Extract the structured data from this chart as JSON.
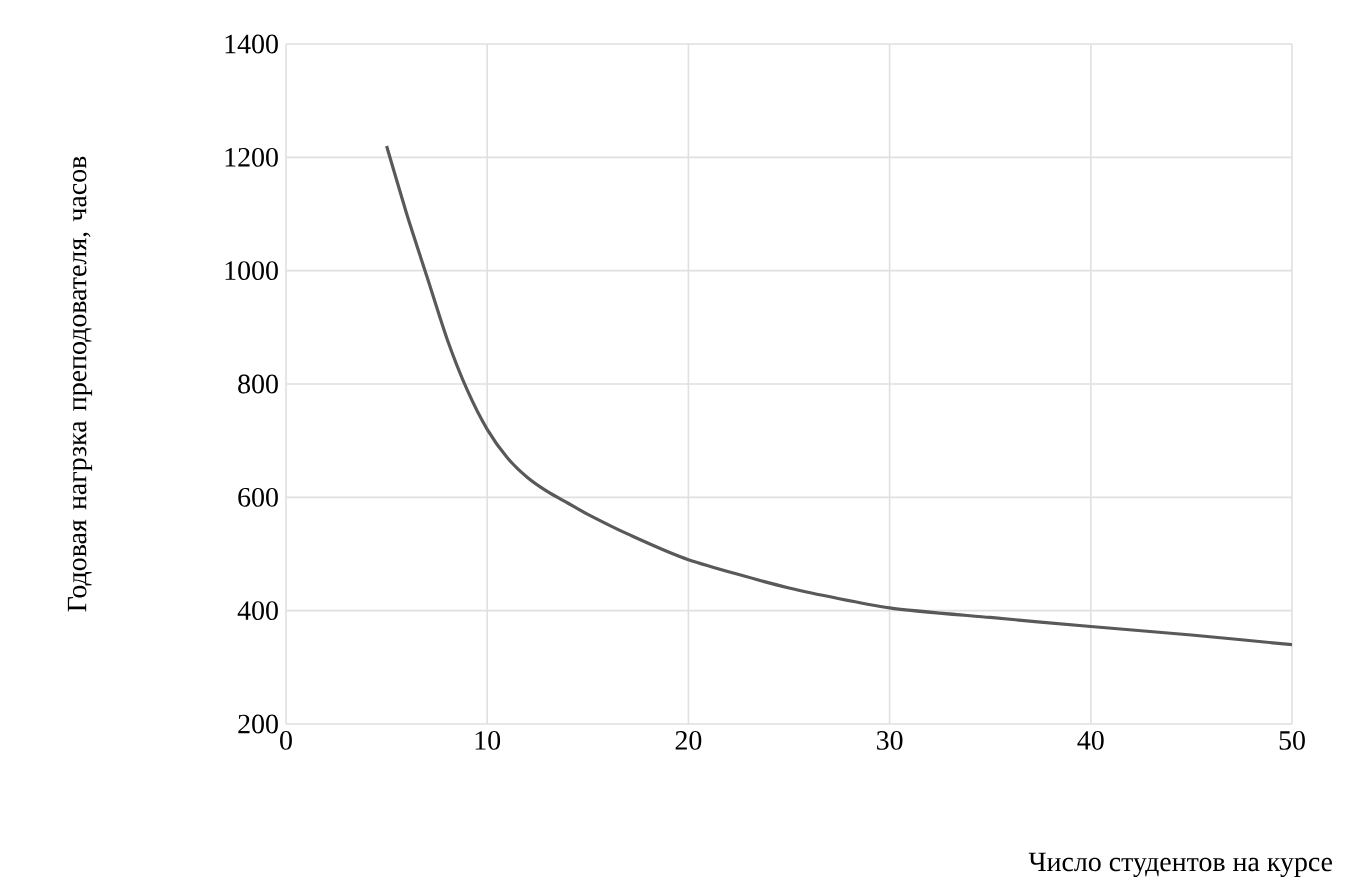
{
  "chart_data": {
    "type": "line",
    "xlabel": "Число студентов на курсе",
    "ylabel": "Годовая нагрзка преподователя, часов",
    "x": [
      5,
      6,
      7,
      8,
      9,
      10,
      11,
      12,
      13,
      14,
      15,
      17,
      20,
      25,
      30,
      35,
      40,
      45,
      50
    ],
    "series": [
      {
        "color": "#595959",
        "values": [
          1220,
          1100,
          990,
          880,
          790,
          720,
          670,
          635,
          610,
          590,
          570,
          535,
          490,
          440,
          405,
          388,
          372,
          357,
          340
        ]
      }
    ],
    "xlim": [
      0,
      50
    ],
    "ylim": [
      200,
      1400
    ],
    "xticks": [
      0,
      10,
      20,
      30,
      40,
      50
    ],
    "yticks": [
      200,
      400,
      600,
      800,
      1000,
      1200,
      1400
    ],
    "grid": true,
    "marker": "none",
    "line_style": "solid"
  }
}
